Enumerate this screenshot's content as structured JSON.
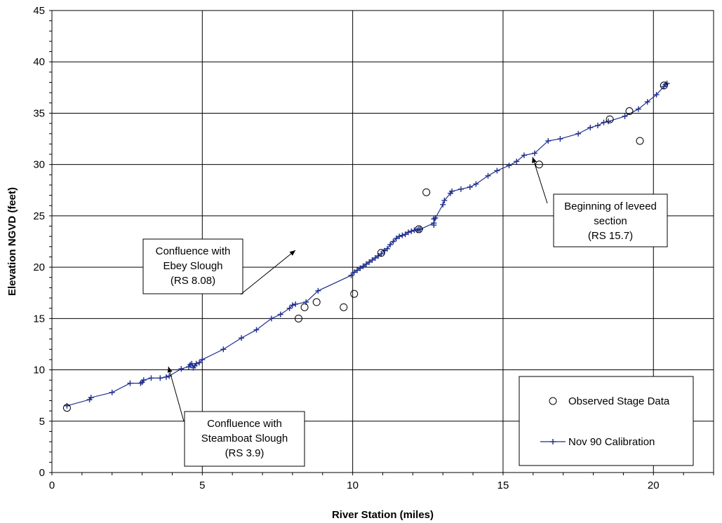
{
  "chart_data": {
    "type": "line",
    "title": "",
    "xlabel": "River Station (miles)",
    "ylabel": "Elevation NGVD (feet)",
    "xlim": [
      0,
      22
    ],
    "ylim": [
      0,
      45
    ],
    "xticks": [
      0,
      5,
      10,
      15,
      20
    ],
    "yticks": [
      0,
      5,
      10,
      15,
      20,
      25,
      30,
      35,
      40,
      45
    ],
    "grid": true,
    "legend_position": "bottom-right",
    "series": [
      {
        "name": "Observed Stage Data",
        "style": "markers-circle",
        "color": "#000000",
        "x": [
          0.5,
          8.2,
          8.4,
          8.8,
          9.7,
          10.05,
          10.95,
          12.2,
          12.45,
          16.2,
          18.55,
          19.2,
          19.55,
          20.35
        ],
        "y": [
          6.3,
          15.0,
          16.1,
          16.6,
          16.1,
          17.4,
          21.4,
          23.7,
          27.3,
          30.0,
          34.4,
          35.2,
          32.3,
          37.7
        ]
      },
      {
        "name": "Nov 90 Calibration",
        "style": "line-plus",
        "color": "#1f2f8f",
        "x": [
          0.5,
          1.25,
          1.3,
          2.0,
          2.6,
          2.95,
          3.0,
          3.05,
          3.3,
          3.6,
          3.8,
          3.9,
          4.3,
          4.55,
          4.6,
          4.65,
          4.7,
          4.75,
          4.8,
          4.9,
          5.0,
          5.7,
          6.3,
          6.8,
          7.3,
          7.6,
          7.9,
          8.0,
          8.1,
          8.45,
          8.85,
          9.95,
          10.05,
          10.15,
          10.25,
          10.35,
          10.45,
          10.55,
          10.65,
          10.75,
          10.85,
          10.95,
          11.05,
          11.15,
          11.25,
          11.35,
          11.45,
          11.55,
          11.65,
          11.75,
          11.85,
          11.95,
          12.05,
          12.15,
          12.2,
          12.25,
          12.7,
          12.75,
          13.0,
          13.05,
          13.25,
          13.3,
          13.6,
          13.9,
          14.1,
          14.5,
          14.8,
          15.2,
          15.45,
          15.7,
          16.05,
          16.5,
          16.9,
          17.5,
          17.9,
          18.15,
          18.35,
          18.5,
          19.05,
          19.5,
          19.8,
          20.1,
          20.35,
          20.4,
          20.45
        ],
        "y": [
          6.5,
          7.1,
          7.3,
          7.8,
          8.7,
          8.7,
          8.8,
          9.0,
          9.2,
          9.2,
          9.3,
          9.4,
          10.1,
          10.3,
          10.5,
          10.6,
          10.2,
          10.4,
          10.6,
          10.7,
          11.0,
          12.0,
          13.1,
          13.9,
          15.0,
          15.4,
          16.0,
          16.3,
          16.4,
          16.6,
          17.7,
          19.2,
          19.5,
          19.7,
          19.9,
          20.1,
          20.3,
          20.5,
          20.7,
          20.9,
          21.1,
          21.3,
          21.6,
          21.8,
          22.2,
          22.5,
          22.8,
          23.0,
          23.1,
          23.2,
          23.4,
          23.5,
          23.6,
          23.6,
          23.7,
          23.7,
          24.3,
          24.8,
          26.1,
          26.5,
          27.2,
          27.4,
          27.6,
          27.8,
          28.1,
          28.9,
          29.4,
          29.9,
          30.3,
          30.9,
          31.1,
          32.3,
          32.5,
          33.0,
          33.6,
          33.8,
          34.1,
          34.2,
          34.7,
          35.4,
          36.1,
          36.8,
          37.6,
          37.8,
          37.9
        ]
      }
    ],
    "extra_markers": [
      {
        "x": 12.7,
        "y": 24.1,
        "symbol": "plus"
      },
      {
        "x": 12.7,
        "y": 24.7,
        "symbol": "plus"
      }
    ],
    "annotations": [
      {
        "lines": [
          "Confluence with",
          "Ebey Slough",
          "(RS 8.08)"
        ],
        "target": {
          "x": 8.08,
          "y": 16.3
        }
      },
      {
        "lines": [
          "Confluence with",
          "Steamboat Slough",
          "(RS 3.9)"
        ],
        "target": {
          "x": 3.9,
          "y": 9.3
        }
      },
      {
        "lines": [
          "Beginning of leveed",
          "section",
          "(RS 15.7)"
        ],
        "target": {
          "x": 15.7,
          "y": 30.7
        }
      }
    ]
  }
}
